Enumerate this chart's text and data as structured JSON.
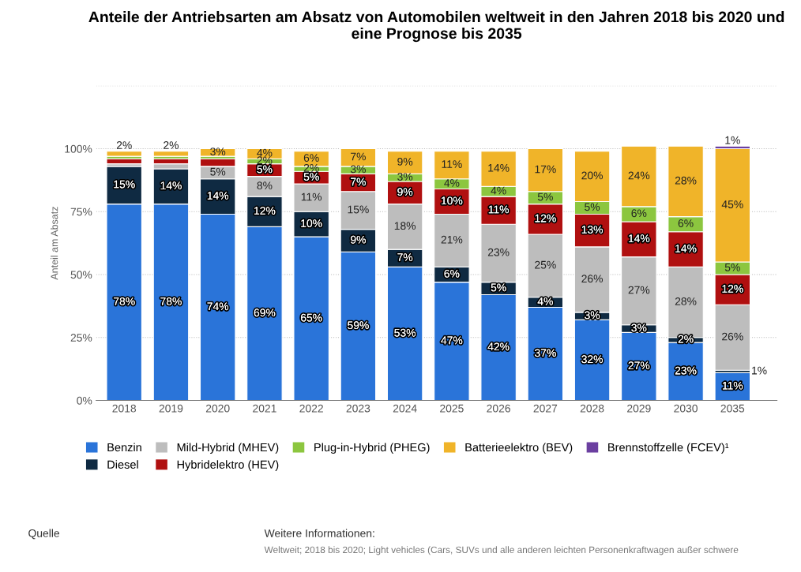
{
  "chart_data": {
    "type": "bar",
    "stacked": true,
    "title": "Anteile der Antriebsarten am Absatz von Automobilen weltweit in den Jahren 2018 bis 2020 und eine Prognose bis 2035",
    "ylabel": "Anteil am Absatz",
    "categories": [
      "2018",
      "2019",
      "2020",
      "2021",
      "2022",
      "2023",
      "2024",
      "2025",
      "2026",
      "2027",
      "2028",
      "2029",
      "2030",
      "2035"
    ],
    "series": [
      {
        "name": "Benzin",
        "color": "#2a74d9",
        "values": [
          78,
          78,
          74,
          69,
          65,
          59,
          53,
          47,
          42,
          37,
          32,
          27,
          23,
          11
        ],
        "value_labels": [
          "78%",
          "78%",
          "74%",
          "69%",
          "65%",
          "59%",
          "53%",
          "47%",
          "42%",
          "37%",
          "32%",
          "27%",
          "23%",
          "11%"
        ]
      },
      {
        "name": "Diesel",
        "color": "#0f2a42",
        "values": [
          15,
          14,
          14,
          12,
          10,
          9,
          7,
          6,
          5,
          4,
          3,
          3,
          2,
          1
        ],
        "value_labels": [
          "15%",
          "14%",
          "14%",
          "12%",
          "10%",
          "9%",
          "7%",
          "6%",
          "5%",
          "4%",
          "3%",
          "3%",
          "2%",
          "1%"
        ]
      },
      {
        "name": "Mild-Hybrid (MHEV)",
        "color": "#bdbdbd",
        "values": [
          1,
          2,
          5,
          8,
          11,
          15,
          18,
          21,
          23,
          25,
          26,
          27,
          28,
          26
        ],
        "value_labels": [
          null,
          null,
          "5%",
          "8%",
          "11%",
          "15%",
          "18%",
          "21%",
          "23%",
          "25%",
          "26%",
          "27%",
          "28%",
          "26%"
        ]
      },
      {
        "name": "Hybridelektro (HEV)",
        "color": "#b01010",
        "values": [
          2,
          2,
          3,
          5,
          5,
          7,
          9,
          10,
          11,
          12,
          13,
          14,
          14,
          12
        ],
        "value_labels": [
          null,
          null,
          null,
          "5%",
          "5%",
          "7%",
          "9%",
          "10%",
          "11%",
          "12%",
          "13%",
          "14%",
          "14%",
          "12%"
        ]
      },
      {
        "name": "Plug-in-Hybrid (PHEG)",
        "color": "#8cc63f",
        "values": [
          1,
          1,
          1,
          2,
          2,
          3,
          3,
          4,
          4,
          5,
          5,
          6,
          6,
          5
        ],
        "value_labels": [
          null,
          null,
          null,
          "2%",
          "2%",
          "3%",
          "3%",
          "4%",
          "4%",
          "5%",
          "5%",
          "6%",
          "6%",
          "5%"
        ]
      },
      {
        "name": "Batterieelektro (BEV)",
        "color": "#f0b429",
        "values": [
          2,
          2,
          3,
          4,
          6,
          7,
          9,
          11,
          14,
          17,
          20,
          24,
          28,
          45
        ],
        "value_labels": [
          "2%",
          "2%",
          "3%",
          "4%",
          "6%",
          "7%",
          "9%",
          "11%",
          "14%",
          "17%",
          "20%",
          "24%",
          "28%",
          "45%"
        ]
      },
      {
        "name": "Brennstoffzelle (FCEV)¹",
        "color": "#6b3fa0",
        "values": [
          null,
          null,
          null,
          null,
          null,
          null,
          null,
          null,
          null,
          null,
          null,
          null,
          null,
          1
        ],
        "value_labels": [
          null,
          null,
          null,
          null,
          null,
          null,
          null,
          null,
          null,
          null,
          null,
          null,
          null,
          "1%"
        ]
      }
    ],
    "ylim": [
      0,
      125
    ],
    "yticks": [
      {
        "value": 0,
        "label": "0%"
      },
      {
        "value": 25,
        "label": "25%"
      },
      {
        "value": 50,
        "label": "50%"
      },
      {
        "value": 75,
        "label": "75%"
      },
      {
        "value": 100,
        "label": "100%"
      },
      {
        "value": 125,
        "label": null
      }
    ],
    "grid": "y",
    "legend": "bottom",
    "annotations": [
      "Quelle",
      "Weitere Informationen:",
      "Weltweit; 2018 bis 2020; Light vehicles (Cars, SUVs und alle anderen leichten Personenkraftwagen außer schwere"
    ]
  }
}
